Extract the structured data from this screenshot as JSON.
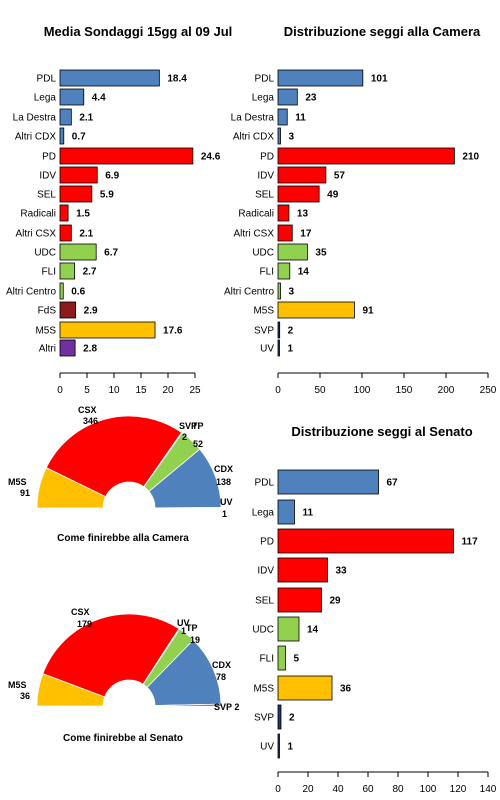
{
  "colors": {
    "pdl": "#4f81bd",
    "red": "#ff0000",
    "green": "#92d050",
    "m5s": "#ffc000",
    "fds": "#8b1a1a",
    "altri": "#7030a0",
    "navy": "#1f3a6e"
  },
  "chart_data": [
    {
      "type": "bar",
      "title": "Media Sondaggi 15gg al 09 Jul",
      "orientation": "horizontal",
      "categories": [
        "PDL",
        "Lega",
        "La Destra",
        "Altri CDX",
        "PD",
        "IDV",
        "SEL",
        "Radicali",
        "Altri CSX",
        "UDC",
        "FLI",
        "Altri Centro",
        "FdS",
        "M5S",
        "Altri"
      ],
      "values": [
        18.4,
        4.4,
        2.1,
        0.7,
        24.6,
        6.9,
        5.9,
        1.5,
        2.1,
        6.7,
        2.7,
        0.6,
        2.9,
        17.6,
        2.8
      ],
      "value_labels": [
        "18.4",
        "4.4",
        "2.1",
        "0.7",
        "24.6",
        "6.9",
        "5.9",
        "1.5",
        "2.1",
        "6.7",
        "2.7",
        "0.6",
        "2.9",
        "17.6",
        "2.8"
      ],
      "colors": [
        "#4f81bd",
        "#4f81bd",
        "#4f81bd",
        "#4f81bd",
        "#ff0000",
        "#ff0000",
        "#ff0000",
        "#ff0000",
        "#ff0000",
        "#92d050",
        "#92d050",
        "#92d050",
        "#8b1a1a",
        "#ffc000",
        "#7030a0"
      ],
      "xlim": [
        0,
        25
      ],
      "ticks": [
        0,
        5,
        10,
        15,
        20,
        25
      ],
      "tick_labels": [
        "0",
        "5",
        "10",
        "15",
        "20",
        "25"
      ]
    },
    {
      "type": "bar",
      "title": "Distribuzione seggi alla Camera",
      "orientation": "horizontal",
      "categories": [
        "PDL",
        "Lega",
        "La Destra",
        "Altri CDX",
        "PD",
        "IDV",
        "SEL",
        "Radicali",
        "Altri CSX",
        "UDC",
        "FLI",
        "Altri Centro",
        "M5S",
        "SVP",
        "UV"
      ],
      "values": [
        101,
        23,
        11,
        3,
        210,
        57,
        49,
        13,
        17,
        35,
        14,
        3,
        91,
        2,
        1
      ],
      "value_labels": [
        "101",
        "23",
        "11",
        "3",
        "210",
        "57",
        "49",
        "13",
        "17",
        "35",
        "14",
        "3",
        "91",
        "2",
        "1"
      ],
      "colors": [
        "#4f81bd",
        "#4f81bd",
        "#4f81bd",
        "#4f81bd",
        "#ff0000",
        "#ff0000",
        "#ff0000",
        "#ff0000",
        "#ff0000",
        "#92d050",
        "#92d050",
        "#92d050",
        "#ffc000",
        "#1f3a6e",
        "#1f3a6e"
      ],
      "xlim": [
        0,
        250
      ],
      "ticks": [
        0,
        50,
        100,
        150,
        200,
        250
      ],
      "tick_labels": [
        "0",
        "50",
        "100",
        "150",
        "200",
        "250"
      ]
    },
    {
      "type": "pie",
      "subtype": "semicircle",
      "caption": "Come finirebbe alla Camera",
      "slices": [
        {
          "label": "M5S",
          "value": 91,
          "color": "#ffc000"
        },
        {
          "label": "CSX",
          "value": 346,
          "color": "#ff0000"
        },
        {
          "label": "SVP",
          "value": 2,
          "color": "#1f3a6e"
        },
        {
          "label": "TP",
          "value": 52,
          "color": "#92d050"
        },
        {
          "label": "CDX",
          "value": 138,
          "color": "#4f81bd"
        },
        {
          "label": "UV",
          "value": 1,
          "color": "#1f3a6e"
        }
      ],
      "annotations": [
        {
          "text": "M5S",
          "align": "start"
        },
        {
          "text": "91",
          "align": "start"
        },
        {
          "text": "CSX",
          "align": "start"
        },
        {
          "text": "346",
          "align": "start"
        },
        {
          "text": "SVP",
          "align": "start"
        },
        {
          "text": "2",
          "align": "start"
        },
        {
          "text": "TP",
          "align": "start"
        },
        {
          "text": "52",
          "align": "start"
        },
        {
          "text": "CDX",
          "align": "start"
        },
        {
          "text": "138",
          "align": "start"
        },
        {
          "text": "UV",
          "align": "start"
        },
        {
          "text": "1",
          "align": "start"
        }
      ]
    },
    {
      "type": "bar",
      "title": "Distribuzione seggi al Senato",
      "orientation": "horizontal",
      "categories": [
        "PDL",
        "Lega",
        "PD",
        "IDV",
        "SEL",
        "UDC",
        "FLI",
        "M5S",
        "SVP",
        "UV"
      ],
      "values": [
        67,
        11,
        117,
        33,
        29,
        14,
        5,
        36,
        2,
        1
      ],
      "value_labels": [
        "67",
        "11",
        "117",
        "33",
        "29",
        "14",
        "5",
        "36",
        "2",
        "1"
      ],
      "colors": [
        "#4f81bd",
        "#4f81bd",
        "#ff0000",
        "#ff0000",
        "#ff0000",
        "#92d050",
        "#92d050",
        "#ffc000",
        "#1f3a6e",
        "#1f3a6e"
      ],
      "xlim": [
        0,
        140
      ],
      "ticks": [
        0,
        20,
        40,
        60,
        80,
        100,
        120,
        140
      ],
      "tick_labels": [
        "0",
        "20",
        "40",
        "60",
        "80",
        "100",
        "120",
        "140"
      ]
    },
    {
      "type": "pie",
      "subtype": "semicircle",
      "caption": "Come finirebbe al Senato",
      "slices": [
        {
          "label": "M5S",
          "value": 36,
          "color": "#ffc000"
        },
        {
          "label": "CSX",
          "value": 179,
          "color": "#ff0000"
        },
        {
          "label": "UV",
          "value": 1,
          "color": "#1f3a6e"
        },
        {
          "label": "TP",
          "value": 19,
          "color": "#92d050"
        },
        {
          "label": "CDX",
          "value": 78,
          "color": "#4f81bd"
        },
        {
          "label": "SVP",
          "value": 2,
          "color": "#1f3a6e"
        }
      ],
      "annotations": [
        {
          "text": "M5S",
          "align": "start"
        },
        {
          "text": "36",
          "align": "start"
        },
        {
          "text": "CSX",
          "align": "start"
        },
        {
          "text": "179",
          "align": "start"
        },
        {
          "text": "UV",
          "align": "start"
        },
        {
          "text": "1",
          "align": "start"
        },
        {
          "text": "TP",
          "align": "start"
        },
        {
          "text": "19",
          "align": "start"
        },
        {
          "text": "CDX",
          "align": "start"
        },
        {
          "text": "78",
          "align": "start"
        },
        {
          "text": "SVP 2",
          "align": "start"
        }
      ]
    }
  ]
}
